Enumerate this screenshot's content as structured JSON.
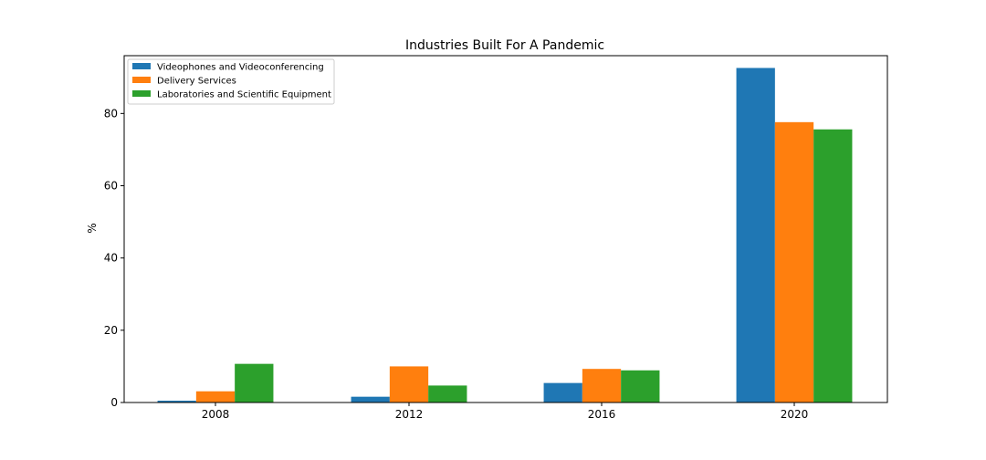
{
  "chart_data": {
    "type": "bar",
    "title": "Industries Built For A Pandemic",
    "xlabel": "",
    "ylabel": "%",
    "categories": [
      "2008",
      "2012",
      "2016",
      "2020"
    ],
    "ylim": [
      0,
      96
    ],
    "yticks": [
      0,
      20,
      40,
      60,
      80
    ],
    "grid": false,
    "legend_position": "top-left",
    "series": [
      {
        "name": "Videophones and Videoconferencing",
        "color": "#1f77b4",
        "values": [
          0.5,
          1.6,
          5.4,
          92.6
        ]
      },
      {
        "name": "Delivery Services",
        "color": "#ff7f0e",
        "values": [
          3.1,
          10.0,
          9.3,
          77.6
        ]
      },
      {
        "name": "Laboratories and Scientific Equipment",
        "color": "#2ca02c",
        "values": [
          10.7,
          4.7,
          8.9,
          75.6
        ]
      }
    ]
  }
}
